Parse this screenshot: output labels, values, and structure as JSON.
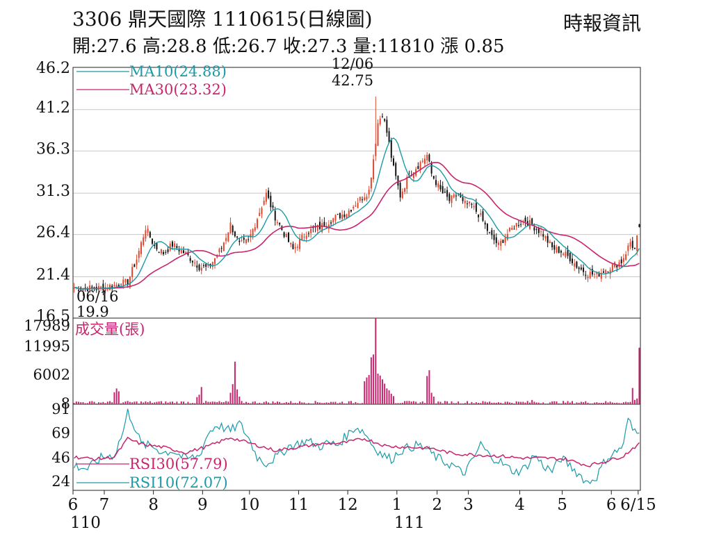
{
  "header": {
    "title": "3306  鼎天國際 1110615(日線圖)",
    "ohlc": "開:27.6 高:28.8 低:26.7 收:27.3 量:11810 漲 0.85",
    "source": "時報資訊"
  },
  "chart_data": [
    {
      "type": "candlestick",
      "panel": "price",
      "yticks": [
        "46.2",
        "41.2",
        "36.3",
        "31.3",
        "26.4",
        "21.4",
        "16.5"
      ],
      "ylim": [
        16.5,
        46.2
      ],
      "grid": true,
      "legend": [
        {
          "label": "MA10(24.88)",
          "color": "#1a9aa8"
        },
        {
          "label": "MA30(23.32)",
          "color": "#c8246e"
        }
      ],
      "annotations": [
        {
          "date": "12/06",
          "value": "42.75",
          "kind": "high"
        },
        {
          "date": "06/16",
          "value": "19.9",
          "kind": "low"
        }
      ],
      "colors": {
        "up": "#e0462c",
        "down": "#111111",
        "ma10": "#1a9aa8",
        "ma30": "#c8246e"
      },
      "anchors": [
        [
          0,
          20.1
        ],
        [
          10,
          20.0
        ],
        [
          18,
          20.4
        ],
        [
          24,
          20.8
        ],
        [
          28,
          23.5
        ],
        [
          32,
          27.2
        ],
        [
          36,
          25.0
        ],
        [
          40,
          24.2
        ],
        [
          44,
          25.2
        ],
        [
          50,
          24.1
        ],
        [
          56,
          22.6
        ],
        [
          60,
          22.4
        ],
        [
          66,
          24.8
        ],
        [
          70,
          27.6
        ],
        [
          74,
          25.2
        ],
        [
          78,
          25.6
        ],
        [
          82,
          28.4
        ],
        [
          86,
          31.2
        ],
        [
          90,
          28.5
        ],
        [
          94,
          26.5
        ],
        [
          98,
          24.6
        ],
        [
          104,
          26.7
        ],
        [
          110,
          27.3
        ],
        [
          116,
          28.3
        ],
        [
          122,
          29.0
        ],
        [
          128,
          30.6
        ],
        [
          132,
          31.6
        ],
        [
          134,
          35.4
        ],
        [
          136,
          39.6
        ],
        [
          138,
          40.8
        ],
        [
          140,
          38.5
        ],
        [
          143,
          34.2
        ],
        [
          146,
          31.0
        ],
        [
          150,
          33.5
        ],
        [
          154,
          34.6
        ],
        [
          158,
          35.8
        ],
        [
          160,
          33.6
        ],
        [
          164,
          31.6
        ],
        [
          168,
          30.4
        ],
        [
          172,
          31.2
        ],
        [
          174,
          30.1
        ],
        [
          178,
          29.8
        ],
        [
          182,
          28.5
        ],
        [
          186,
          26.4
        ],
        [
          190,
          25.1
        ],
        [
          194,
          26.5
        ],
        [
          198,
          27.6
        ],
        [
          202,
          28.1
        ],
        [
          206,
          27.3
        ],
        [
          210,
          26.4
        ],
        [
          214,
          24.8
        ],
        [
          218,
          24.4
        ],
        [
          222,
          23.6
        ],
        [
          226,
          22.4
        ],
        [
          230,
          21.8
        ],
        [
          234,
          21.6
        ],
        [
          238,
          22.3
        ],
        [
          242,
          22.8
        ],
        [
          245,
          23.2
        ],
        [
          247,
          24.3
        ],
        [
          249,
          25.5
        ],
        [
          251,
          24.6
        ],
        [
          253,
          27.3
        ]
      ],
      "ma10_last": 24.88,
      "ma30_last": 23.32
    },
    {
      "type": "bar",
      "panel": "volume",
      "ylabel": "成交量(張)",
      "yticks": [
        "17989",
        "11995",
        "6002",
        "8"
      ],
      "ylim": [
        8,
        17989
      ],
      "color": "#c8246e",
      "spikes": [
        [
          18,
          2500
        ],
        [
          19,
          3300
        ],
        [
          20,
          2700
        ],
        [
          55,
          1500
        ],
        [
          56,
          2000
        ],
        [
          57,
          3600
        ],
        [
          70,
          2400
        ],
        [
          71,
          4200
        ],
        [
          72,
          8900
        ],
        [
          73,
          3100
        ],
        [
          74,
          1600
        ],
        [
          130,
          4800
        ],
        [
          131,
          5600
        ],
        [
          132,
          6100
        ],
        [
          133,
          9800
        ],
        [
          134,
          10400
        ],
        [
          135,
          17989
        ],
        [
          136,
          6400
        ],
        [
          137,
          6000
        ],
        [
          138,
          5200
        ],
        [
          139,
          4300
        ],
        [
          140,
          3300
        ],
        [
          141,
          2900
        ],
        [
          142,
          2200
        ],
        [
          143,
          1700
        ],
        [
          158,
          5900
        ],
        [
          159,
          7100
        ],
        [
          160,
          2400
        ],
        [
          161,
          1600
        ],
        [
          205,
          900
        ],
        [
          250,
          3400
        ],
        [
          251,
          900
        ],
        [
          252,
          1200
        ],
        [
          253,
          11810
        ]
      ],
      "noise_range": [
        150,
        700
      ]
    },
    {
      "type": "line",
      "panel": "rsi",
      "yticks": [
        "91",
        "69",
        "46",
        "24"
      ],
      "ylim": [
        15,
        95
      ],
      "legend": [
        {
          "label": "RSI30(57.79)",
          "color": "#c8246e"
        },
        {
          "label": "RSI10(72.07)",
          "color": "#1a9aa8"
        }
      ],
      "rsi10_anchors": [
        [
          0,
          38
        ],
        [
          6,
          35
        ],
        [
          12,
          45
        ],
        [
          18,
          48
        ],
        [
          22,
          70
        ],
        [
          24,
          88
        ],
        [
          26,
          80
        ],
        [
          30,
          58
        ],
        [
          36,
          55
        ],
        [
          40,
          50
        ],
        [
          44,
          52
        ],
        [
          50,
          44
        ],
        [
          56,
          47
        ],
        [
          60,
          68
        ],
        [
          64,
          76
        ],
        [
          70,
          70
        ],
        [
          74,
          77
        ],
        [
          78,
          64
        ],
        [
          82,
          46
        ],
        [
          86,
          40
        ],
        [
          92,
          48
        ],
        [
          96,
          56
        ],
        [
          100,
          58
        ],
        [
          104,
          61
        ],
        [
          110,
          56
        ],
        [
          114,
          59
        ],
        [
          118,
          57
        ],
        [
          122,
          66
        ],
        [
          126,
          74
        ],
        [
          130,
          69
        ],
        [
          134,
          56
        ],
        [
          138,
          48
        ],
        [
          142,
          44
        ],
        [
          146,
          52
        ],
        [
          150,
          55
        ],
        [
          154,
          57
        ],
        [
          158,
          53
        ],
        [
          162,
          46
        ],
        [
          166,
          41
        ],
        [
          170,
          38
        ],
        [
          174,
          30
        ],
        [
          178,
          41
        ],
        [
          182,
          58
        ],
        [
          186,
          47
        ],
        [
          190,
          43
        ],
        [
          194,
          36
        ],
        [
          198,
          32
        ],
        [
          202,
          36
        ],
        [
          206,
          48
        ],
        [
          210,
          38
        ],
        [
          214,
          33
        ],
        [
          218,
          45
        ],
        [
          222,
          38
        ],
        [
          226,
          30
        ],
        [
          230,
          22
        ],
        [
          234,
          28
        ],
        [
          238,
          44
        ],
        [
          242,
          50
        ],
        [
          246,
          57
        ],
        [
          248,
          82
        ],
        [
          250,
          71
        ],
        [
          253,
          72
        ]
      ],
      "rsi30_anchors": [
        [
          0,
          46
        ],
        [
          10,
          44
        ],
        [
          18,
          46
        ],
        [
          24,
          63
        ],
        [
          30,
          58
        ],
        [
          40,
          55
        ],
        [
          50,
          50
        ],
        [
          60,
          56
        ],
        [
          70,
          64
        ],
        [
          80,
          58
        ],
        [
          90,
          52
        ],
        [
          100,
          55
        ],
        [
          110,
          58
        ],
        [
          120,
          59
        ],
        [
          130,
          63
        ],
        [
          140,
          56
        ],
        [
          150,
          55
        ],
        [
          160,
          54
        ],
        [
          170,
          49
        ],
        [
          180,
          48
        ],
        [
          190,
          47
        ],
        [
          200,
          45
        ],
        [
          210,
          45
        ],
        [
          220,
          44
        ],
        [
          230,
          38
        ],
        [
          238,
          42
        ],
        [
          246,
          47
        ],
        [
          250,
          54
        ],
        [
          253,
          57.79
        ]
      ]
    }
  ],
  "xaxis": {
    "ticks": [
      {
        "label": "6",
        "i": 0
      },
      {
        "label": "7",
        "i": 14
      },
      {
        "label": "8",
        "i": 36
      },
      {
        "label": "9",
        "i": 58
      },
      {
        "label": "10",
        "i": 79
      },
      {
        "label": "11",
        "i": 101
      },
      {
        "label": "12",
        "i": 123
      },
      {
        "label": "1",
        "i": 145
      },
      {
        "label": "2",
        "i": 163
      },
      {
        "label": "3",
        "i": 177
      },
      {
        "label": "4",
        "i": 200
      },
      {
        "label": "5",
        "i": 219
      },
      {
        "label": "6",
        "i": 241
      },
      {
        "label": "6/15",
        "i": 253
      }
    ],
    "years": [
      {
        "label": "110",
        "i": 0
      },
      {
        "label": "111",
        "i": 145
      }
    ],
    "count": 254
  }
}
